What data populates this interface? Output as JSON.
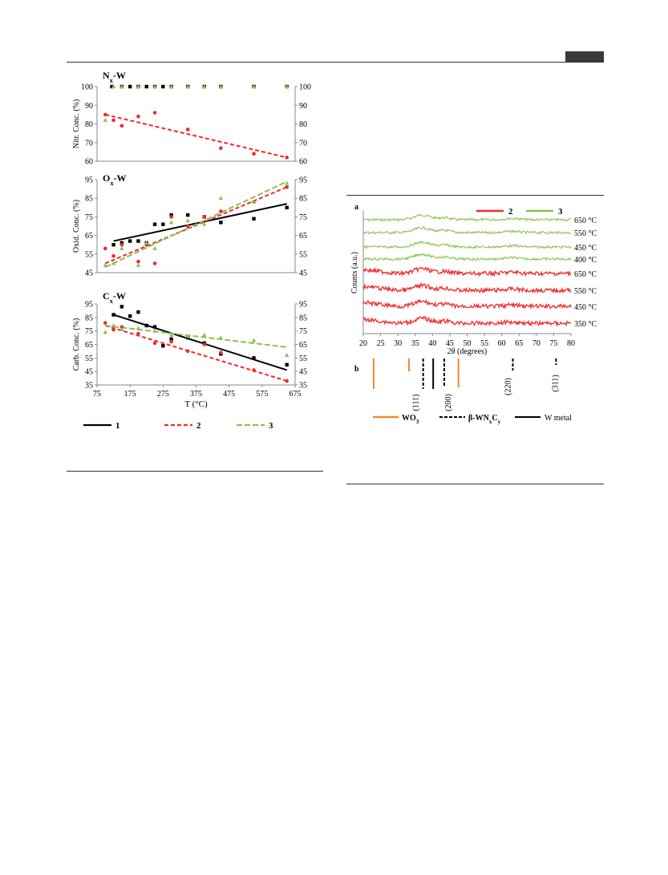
{
  "colors": {
    "s1": "#000000",
    "s2": "#ef2b2b",
    "s3": "#8cc152",
    "wo3": "#f08a2e",
    "axis": "#888888"
  },
  "left_figure": {
    "legend": [
      {
        "id": "1",
        "label": "1"
      },
      {
        "id": "2",
        "label": "2"
      },
      {
        "id": "3",
        "label": "3"
      }
    ],
    "x_axis": {
      "label": "T (°C)",
      "ticks": [
        "75",
        "175",
        "275",
        "375",
        "475",
        "575",
        "675"
      ],
      "range": [
        75,
        675
      ]
    }
  },
  "chart_data": [
    {
      "id": "nitr",
      "type": "scatter",
      "panel_title": {
        "main": "N",
        "sub": "x",
        "tail": "-W"
      },
      "ylabel": "Nitr. Conc. (%)",
      "ylim": [
        60,
        100
      ],
      "yticks": [
        "60",
        "70",
        "80",
        "90",
        "100"
      ],
      "xlim": [
        75,
        675
      ],
      "series": [
        {
          "id": "1",
          "x": [
            120,
            150,
            175,
            200,
            225,
            250,
            275,
            300,
            350,
            400,
            450,
            550,
            650
          ],
          "y": [
            100,
            100,
            100,
            100,
            100,
            100,
            100,
            100,
            100,
            100,
            100,
            100,
            100
          ]
        },
        {
          "id": "2",
          "x": [
            100,
            125,
            150,
            200,
            250,
            350,
            450,
            550,
            650
          ],
          "y": [
            85,
            82,
            79,
            84,
            86,
            77,
            67,
            64,
            62
          ],
          "trend": [
            [
              100,
              85
            ],
            [
              650,
              62
            ]
          ]
        },
        {
          "id": "3",
          "x": [
            100,
            125,
            150,
            200,
            250,
            300,
            350,
            400,
            450,
            550,
            650
          ],
          "y": [
            82,
            100,
            100,
            100,
            100,
            100,
            100,
            100,
            100,
            100,
            100
          ]
        }
      ]
    },
    {
      "id": "oxid",
      "type": "scatter",
      "panel_title": {
        "main": "O",
        "sub": "x",
        "tail": "-W"
      },
      "ylabel": "Oxid. Conc. (%)",
      "ylim": [
        45,
        95
      ],
      "yticks": [
        "45",
        "55",
        "65",
        "75",
        "85",
        "95"
      ],
      "xlim": [
        75,
        675
      ],
      "series": [
        {
          "id": "1",
          "x": [
            125,
            150,
            175,
            200,
            225,
            250,
            275,
            300,
            350,
            400,
            450,
            550,
            650
          ],
          "y": [
            60,
            61,
            62,
            62,
            61,
            71,
            71,
            76,
            76,
            75,
            72,
            74,
            80
          ],
          "trend": [
            [
              125,
              62
            ],
            [
              650,
              82
            ]
          ]
        },
        {
          "id": "2",
          "x": [
            100,
            125,
            150,
            200,
            225,
            250,
            300,
            350,
            400,
            450,
            550,
            650
          ],
          "y": [
            58,
            54,
            60,
            51,
            60,
            50,
            75,
            70,
            75,
            78,
            83,
            91
          ],
          "trend": [
            [
              100,
              50
            ],
            [
              650,
              91
            ]
          ]
        },
        {
          "id": "3",
          "x": [
            100,
            125,
            150,
            200,
            225,
            250,
            300,
            350,
            400,
            450,
            550,
            650
          ],
          "y": [
            49,
            50,
            58,
            49,
            61,
            58,
            72,
            73,
            71,
            85,
            83,
            93
          ],
          "trend": [
            [
              100,
              48
            ],
            [
              650,
              94
            ]
          ]
        }
      ]
    },
    {
      "id": "carb",
      "type": "scatter",
      "panel_title": {
        "main": "C",
        "sub": "x",
        "tail": "-W"
      },
      "ylabel": "Carb. Conc. (%)",
      "ylim": [
        35,
        95
      ],
      "yticks": [
        "35",
        "45",
        "55",
        "65",
        "75",
        "85",
        "95"
      ],
      "xlim": [
        75,
        675
      ],
      "series": [
        {
          "id": "1",
          "x": [
            125,
            150,
            175,
            200,
            225,
            250,
            275,
            300,
            350,
            400,
            450,
            550,
            650
          ],
          "y": [
            87,
            93,
            86,
            89,
            79,
            78,
            64,
            69,
            70,
            66,
            58,
            55,
            50
          ],
          "trend": [
            [
              125,
              87
            ],
            [
              650,
              46
            ]
          ]
        },
        {
          "id": "2",
          "x": [
            100,
            125,
            150,
            200,
            250,
            300,
            350,
            400,
            450,
            550,
            650
          ],
          "y": [
            81,
            76,
            78,
            73,
            66,
            67,
            60,
            65,
            59,
            46,
            38
          ],
          "trend": [
            [
              100,
              79
            ],
            [
              650,
              38
            ]
          ]
        },
        {
          "id": "3",
          "x": [
            100,
            125,
            150,
            200,
            250,
            300,
            350,
            400,
            450,
            550,
            650
          ],
          "y": [
            74,
            79,
            76,
            77,
            75,
            72,
            71,
            72,
            70,
            68,
            57
          ],
          "trend": [
            [
              100,
              79
            ],
            [
              650,
              63
            ]
          ]
        }
      ]
    },
    {
      "id": "xrd",
      "type": "line",
      "panel_label": "a",
      "xlabel": "2θ (degrees)",
      "ylabel": "Counts (a.u.)",
      "xlim": [
        20,
        80
      ],
      "xticks": [
        "20",
        "25",
        "30",
        "35",
        "40",
        "45",
        "50",
        "55",
        "60",
        "65",
        "70",
        "75",
        "80"
      ],
      "legend": [
        {
          "id": "2",
          "label": "2"
        },
        {
          "id": "3",
          "label": "3"
        }
      ],
      "series": [
        {
          "sample": "3",
          "temp": "650 °C",
          "level": 0
        },
        {
          "sample": "3",
          "temp": "550 °C",
          "level": 1
        },
        {
          "sample": "3",
          "temp": "450 °C",
          "level": 2
        },
        {
          "sample": "3",
          "temp": "400 °C",
          "level": 3
        },
        {
          "sample": "2",
          "temp": "650 °C",
          "level": 4
        },
        {
          "sample": "2",
          "temp": "550 °C",
          "level": 5
        },
        {
          "sample": "2",
          "temp": "450 °C",
          "level": 6
        },
        {
          "sample": "2",
          "temp": "350 °C",
          "level": 7
        }
      ]
    },
    {
      "id": "ref",
      "type": "bar",
      "panel_label": "b",
      "xlim": [
        20,
        80
      ],
      "phases": [
        {
          "name": "WO3",
          "label_main": "WO",
          "label_sub": "3",
          "style": "solid-orange",
          "lines": [
            23.0,
            33.2,
            47.5
          ]
        },
        {
          "name": "beta-WNxCy",
          "label_main": "β-WN",
          "label_sub1": "x",
          "label_mid": "C",
          "label_sub2": "y",
          "style": "dashed-black",
          "lines": [
            37.3,
            43.4,
            63.2,
            75.7
          ]
        },
        {
          "name": "W metal",
          "label_main": "W metal",
          "style": "solid-black",
          "lines": [
            40.2
          ]
        }
      ],
      "hkl": [
        {
          "x": 37.3,
          "label": "(111)"
        },
        {
          "x": 43.4,
          "label": "(200)"
        },
        {
          "x": 63.2,
          "label": "(220)"
        },
        {
          "x": 75.7,
          "label": "(311)"
        }
      ]
    }
  ]
}
